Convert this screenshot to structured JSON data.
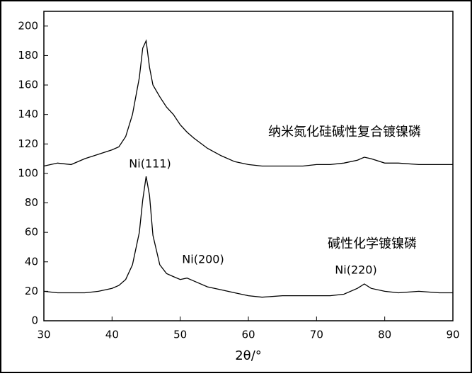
{
  "chart_data": {
    "type": "line",
    "x_label": "2θ/°",
    "x": [
      30,
      32,
      34,
      36,
      38,
      40,
      41,
      42,
      43,
      44,
      44.5,
      45,
      45.5,
      46,
      47,
      48,
      49,
      50,
      51,
      52,
      54,
      56,
      58,
      60,
      62,
      65,
      68,
      70,
      72,
      74,
      76,
      77,
      78,
      80,
      82,
      85,
      88,
      90
    ],
    "series": [
      {
        "name": "纳米氮化硅碱性复合镀镍磷",
        "color": "#000000",
        "values": [
          105,
          107,
          106,
          110,
          113,
          116,
          118,
          125,
          140,
          165,
          185,
          190,
          172,
          160,
          152,
          145,
          140,
          133,
          128,
          124,
          117,
          112,
          108,
          106,
          105,
          105,
          105,
          106,
          106,
          107,
          109,
          111,
          110,
          107,
          107,
          106,
          106,
          106
        ]
      },
      {
        "name": "碱性化学镀镍磷",
        "color": "#000000",
        "values": [
          20,
          19,
          19,
          19,
          20,
          22,
          24,
          28,
          38,
          60,
          82,
          98,
          85,
          58,
          38,
          32,
          30,
          28,
          29,
          27,
          23,
          21,
          19,
          17,
          16,
          17,
          17,
          17,
          17,
          18,
          22,
          25,
          22,
          20,
          19,
          20,
          19,
          19
        ]
      }
    ],
    "annotations": [
      "Ni(111)",
      "Ni(200)",
      "Ni(220)"
    ],
    "xlim": [
      30,
      90
    ],
    "xticks": [
      30,
      40,
      50,
      60,
      70,
      80,
      90
    ],
    "ylim": [
      0,
      210
    ],
    "yticks": [
      0,
      20,
      40,
      60,
      80,
      100,
      120,
      140,
      160,
      180,
      200
    ],
    "grid": false
  }
}
